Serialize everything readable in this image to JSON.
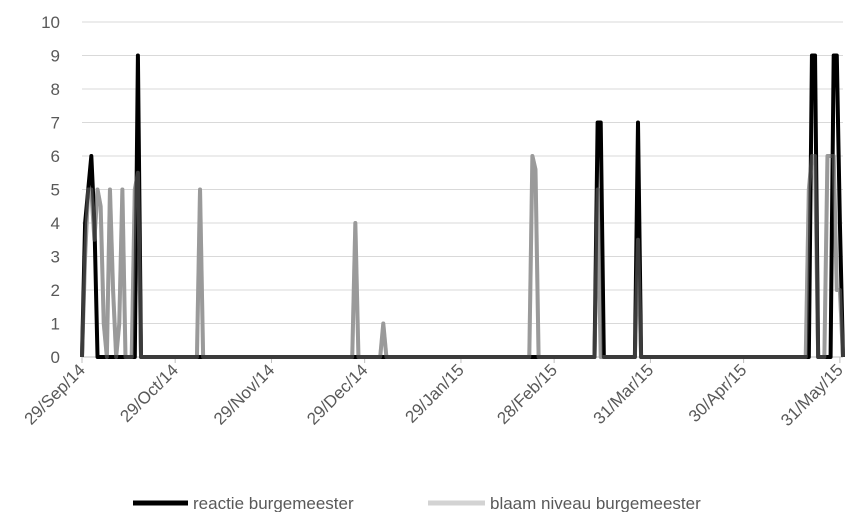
{
  "chart_data": {
    "type": "line",
    "ylim": [
      0,
      10
    ],
    "yticks": [
      "0",
      "1",
      "2",
      "3",
      "4",
      "5",
      "6",
      "7",
      "8",
      "9",
      "10"
    ],
    "xlim": [
      "2014-09-29",
      "2015-06-01"
    ],
    "xticks": [
      {
        "date": "2014-09-29",
        "label": "29/Sep/14"
      },
      {
        "date": "2014-10-29",
        "label": "29/Oct/14"
      },
      {
        "date": "2014-11-29",
        "label": "29/Nov/14"
      },
      {
        "date": "2014-12-29",
        "label": "29/Dec/14"
      },
      {
        "date": "2015-01-29",
        "label": "29/Jan/15"
      },
      {
        "date": "2015-02-28",
        "label": "28/Feb/15"
      },
      {
        "date": "2015-03-31",
        "label": "31/Mar/15"
      },
      {
        "date": "2015-04-30",
        "label": "30/Apr/15"
      },
      {
        "date": "2015-05-31",
        "label": "31/May/15"
      }
    ],
    "grid": true,
    "legend_position": "bottom",
    "series": [
      {
        "name": "blaam niveau burgemeester",
        "color": "#d3d3d3",
        "points": [
          [
            "2014-09-29",
            0
          ],
          [
            "2014-09-30",
            3
          ],
          [
            "2014-10-01",
            5
          ],
          [
            "2014-10-02",
            5
          ],
          [
            "2014-10-03",
            3.5
          ],
          [
            "2014-10-04",
            5
          ],
          [
            "2014-10-05",
            4.5
          ],
          [
            "2014-10-06",
            1
          ],
          [
            "2014-10-07",
            0
          ],
          [
            "2014-10-08",
            5
          ],
          [
            "2014-10-09",
            2
          ],
          [
            "2014-10-10",
            0
          ],
          [
            "2014-10-11",
            1
          ],
          [
            "2014-10-12",
            5
          ],
          [
            "2014-10-13",
            0
          ],
          [
            "2014-10-15",
            0
          ],
          [
            "2014-10-16",
            5
          ],
          [
            "2014-10-17",
            5.5
          ],
          [
            "2014-10-18",
            0
          ],
          [
            "2014-11-05",
            0
          ],
          [
            "2014-11-06",
            5
          ],
          [
            "2014-11-07",
            0
          ],
          [
            "2014-12-25",
            0
          ],
          [
            "2014-12-26",
            4
          ],
          [
            "2014-12-27",
            0
          ],
          [
            "2015-01-03",
            0
          ],
          [
            "2015-01-04",
            1
          ],
          [
            "2015-01-05",
            0
          ],
          [
            "2015-02-20",
            0
          ],
          [
            "2015-02-21",
            6
          ],
          [
            "2015-02-22",
            5.6
          ],
          [
            "2015-02-23",
            0
          ],
          [
            "2015-03-13",
            0
          ],
          [
            "2015-03-14",
            5
          ],
          [
            "2015-03-15",
            0
          ],
          [
            "2015-03-26",
            0
          ],
          [
            "2015-03-27",
            3.5
          ],
          [
            "2015-03-28",
            0
          ],
          [
            "2015-05-20",
            0
          ],
          [
            "2015-05-21",
            5
          ],
          [
            "2015-05-22",
            6
          ],
          [
            "2015-05-23",
            6
          ],
          [
            "2015-05-24",
            0
          ],
          [
            "2015-05-26",
            0
          ],
          [
            "2015-05-27",
            6
          ],
          [
            "2015-05-28",
            6
          ],
          [
            "2015-05-29",
            6
          ],
          [
            "2015-05-30",
            2
          ],
          [
            "2015-05-31",
            2
          ],
          [
            "2015-06-01",
            0
          ]
        ]
      },
      {
        "name": "reactie burgemeester",
        "color": "#000000",
        "points": [
          [
            "2014-09-29",
            0
          ],
          [
            "2014-09-30",
            4
          ],
          [
            "2014-10-01",
            5
          ],
          [
            "2014-10-02",
            6
          ],
          [
            "2014-10-03",
            4
          ],
          [
            "2014-10-04",
            0
          ],
          [
            "2014-10-16",
            0
          ],
          [
            "2014-10-17",
            9
          ],
          [
            "2014-10-18",
            0
          ],
          [
            "2015-03-13",
            0
          ],
          [
            "2015-03-14",
            7
          ],
          [
            "2015-03-15",
            7
          ],
          [
            "2015-03-16",
            0
          ],
          [
            "2015-03-26",
            0
          ],
          [
            "2015-03-27",
            7
          ],
          [
            "2015-03-28",
            0
          ],
          [
            "2015-05-21",
            0
          ],
          [
            "2015-05-22",
            9
          ],
          [
            "2015-05-23",
            9
          ],
          [
            "2015-05-24",
            0
          ],
          [
            "2015-05-28",
            0
          ],
          [
            "2015-05-29",
            9
          ],
          [
            "2015-05-30",
            9
          ],
          [
            "2015-05-31",
            4
          ],
          [
            "2015-06-01",
            0
          ]
        ]
      }
    ],
    "overlap_color": "#6b6b6b"
  },
  "legend": {
    "items": [
      {
        "label": "reactie burgemeester",
        "color": "#000000"
      },
      {
        "label": "blaam niveau burgemeester",
        "color": "#d3d3d3"
      }
    ]
  }
}
